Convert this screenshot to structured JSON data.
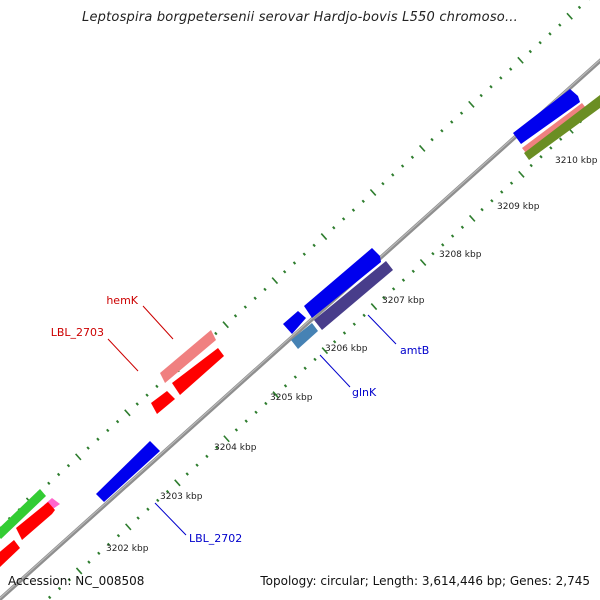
{
  "header": {
    "title": "Leptospira borgpetersenii serovar Hardjo-bovis L550 chromoso..."
  },
  "footer": {
    "accession": "Accession: NC_008508",
    "summary": "Topology: circular; Length: 3,614,446 bp; Genes: 2,745"
  },
  "colors": {
    "backbone": "#8f8f8f",
    "tick": "#2e7d2e",
    "label_red": "#cc0000",
    "label_blue": "#0000cc",
    "feature_blue": "#0000ee",
    "feature_red": "#ff0000",
    "feature_pink": "#f08080",
    "feature_green": "#33cc33",
    "feature_olive": "#6b8e23",
    "feature_steel": "#4682b4",
    "feature_slate": "#483d8b"
  },
  "tick_labels": [
    "3202 kbp",
    "3203 kbp",
    "3204 kbp",
    "3205 kbp",
    "3206 kbp",
    "3207 kbp",
    "3208 kbp",
    "3209 kbp",
    "3210 kbp"
  ],
  "gene_labels": [
    {
      "name": "hemK",
      "color": "red"
    },
    {
      "name": "LBL_2703",
      "color": "red"
    },
    {
      "name": "amtB",
      "color": "blue"
    },
    {
      "name": "glnK",
      "color": "blue"
    },
    {
      "name": "LBL_2702",
      "color": "blue"
    }
  ]
}
